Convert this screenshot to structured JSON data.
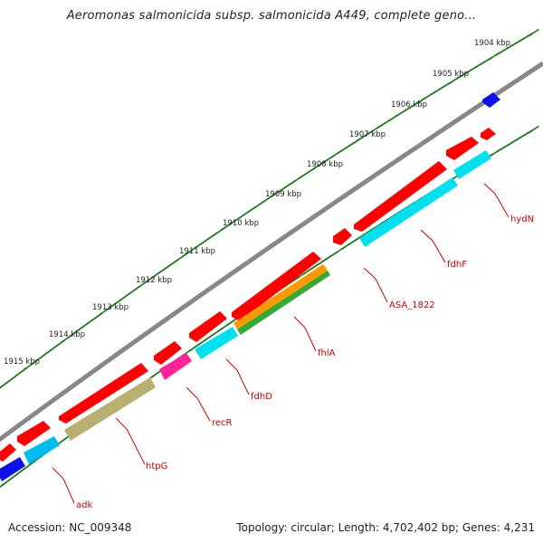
{
  "title": "Aeromonas salmonicida subsp. salmonicida A449, complete geno...",
  "footer": {
    "accession": "Accession: NC_009348",
    "summary": "Topology: circular; Length: 4,702,402 bp; Genes: 4,231"
  },
  "scale_labels": [
    "1904 kbp",
    "1905 kbp",
    "1906 kbp",
    "1907 kbp",
    "1908 kbp",
    "1909 kbp",
    "1910 kbp",
    "1911 kbp",
    "1912 kbp",
    "1913 kbp",
    "1914 kbp",
    "1915 kbp"
  ],
  "gene_labels": [
    "hydN",
    "fdhF",
    "ASA_1822",
    "fhlA",
    "fdhD",
    "recR",
    "htpG",
    "adk"
  ],
  "colors": {
    "backbone": "#888888",
    "scale_ticks": "#1f7a1f",
    "label_text": "#cc0000",
    "cds": "#ff0000",
    "cyan": "#00e0ee",
    "blue": "#1010ee",
    "orange": "#ff9900",
    "green": "#33aa33",
    "magenta": "#ff2299",
    "olive": "#b8b070"
  }
}
